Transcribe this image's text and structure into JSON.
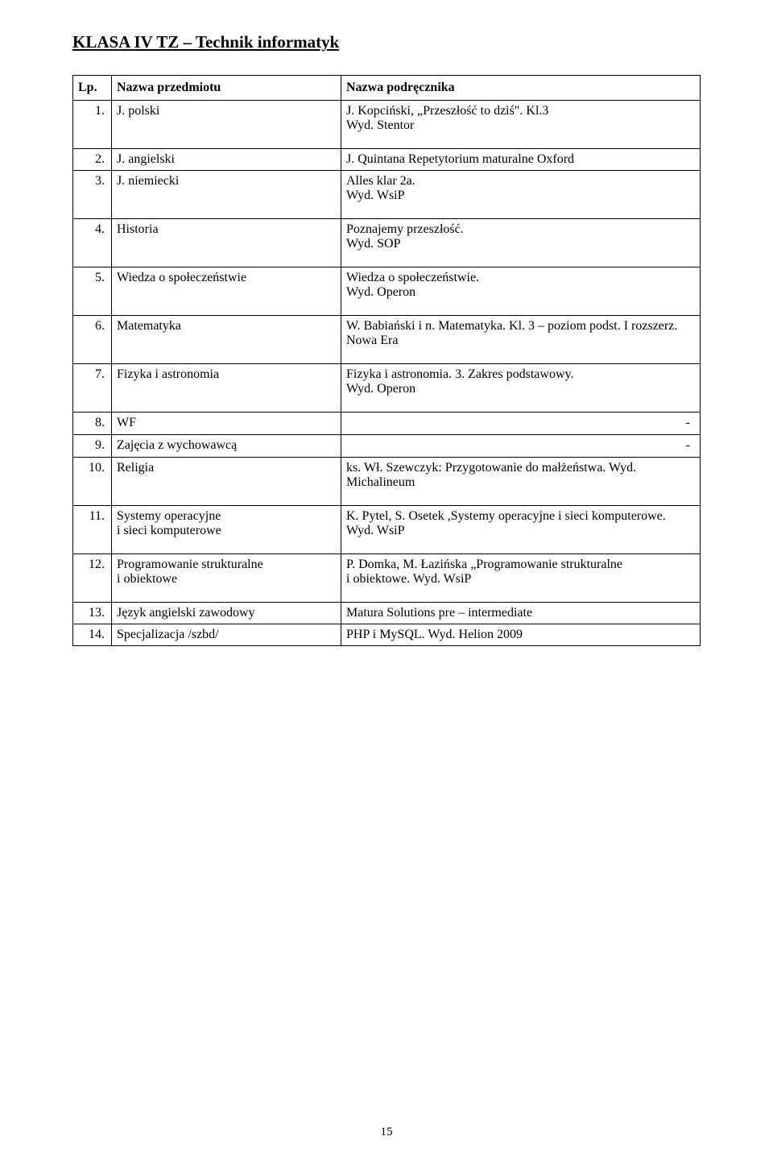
{
  "page": {
    "title": "KLASA IV TZ – Technik informatyk",
    "pageNumber": "15"
  },
  "headers": {
    "lp": "Lp.",
    "subject": "Nazwa przedmiotu",
    "book": "Nazwa podręcznika"
  },
  "rows": [
    {
      "lp": "1.",
      "subject": "J. polski",
      "book": "J. Kopciński, „Przeszłość to dziś\". Kl.3\nWyd. Stentor"
    },
    {
      "lp": "2.",
      "subject": "J. angielski",
      "book": "J. Quintana Repetytorium maturalne Oxford"
    },
    {
      "lp": "3.",
      "subject": "J. niemiecki",
      "book": "Alles klar 2a.\nWyd. WsiP"
    },
    {
      "lp": "4.",
      "subject": "Historia",
      "book": "Poznajemy przeszłość.\nWyd. SOP"
    },
    {
      "lp": "5.",
      "subject": "Wiedza o społeczeństwie",
      "book": "Wiedza o społeczeństwie.\nWyd. Operon"
    },
    {
      "lp": "6.",
      "subject": "Matematyka",
      "book": "W. Babiański i   n. Matematyka. Kl. 3 – poziom podst. I rozszerz. Nowa Era"
    },
    {
      "lp": "7.",
      "subject": "Fizyka i astronomia",
      "book": "Fizyka i astronomia. 3. Zakres podstawowy.\nWyd. Operon"
    },
    {
      "lp": "8.",
      "subject": "WF",
      "book": "-",
      "dash": true
    },
    {
      "lp": "9.",
      "subject": "Zajęcia z wychowawcą",
      "book": "-",
      "dash": true
    },
    {
      "lp": "10.",
      "subject": "Religia",
      "book": "ks. Wł. Szewczyk: Przygotowanie do małżeństwa. Wyd. Michalineum"
    },
    {
      "lp": "11.",
      "subject": "Systemy operacyjne\ni sieci komputerowe",
      "book": "K. Pytel, S. Osetek ,Systemy operacyjne i sieci komputerowe. Wyd. WsiP"
    },
    {
      "lp": "12.",
      "subject": "Programowanie strukturalne\ni obiektowe",
      "book": "P. Domka, M. Łazińska „Programowanie strukturalne\ni obiektowe. Wyd. WsiP"
    },
    {
      "lp": "13.",
      "subject": "Język angielski zawodowy",
      "book": "Matura Solutions pre – intermediate"
    },
    {
      "lp": "14.",
      "subject": "Specjalizacja /szbd/",
      "book": "PHP i MySQL. Wyd. Helion 2009"
    }
  ]
}
